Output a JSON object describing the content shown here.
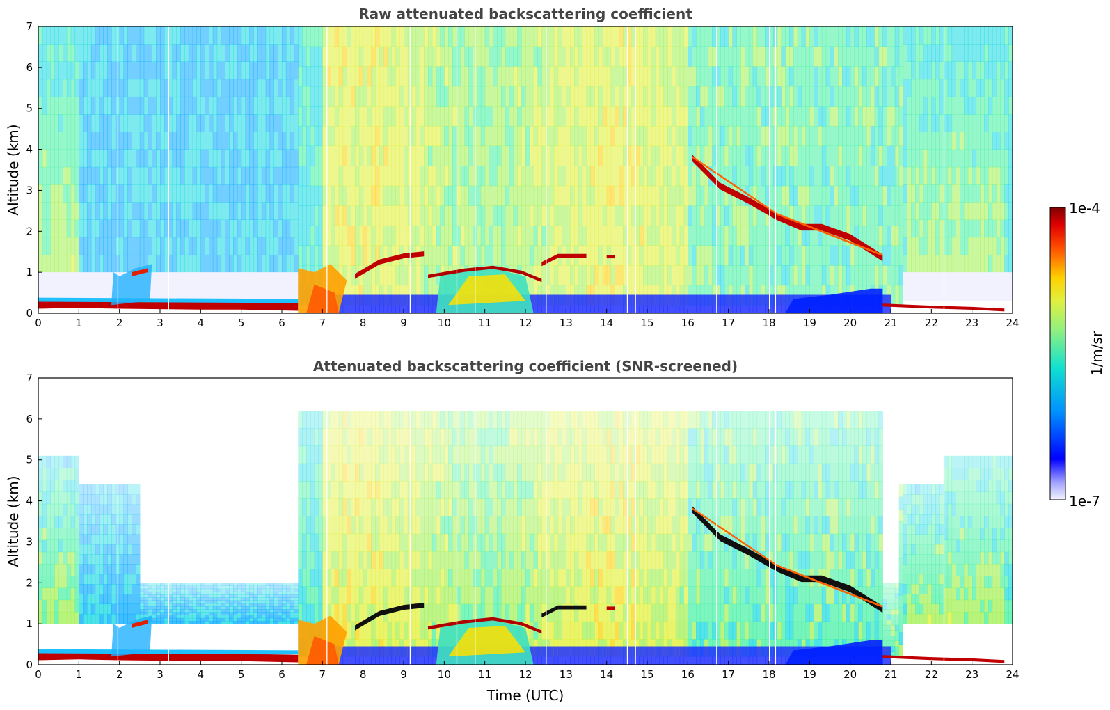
{
  "chart_data": [
    {
      "type": "heatmap",
      "title": "Raw attenuated backscattering coefficient",
      "xlabel": "",
      "ylabel": "Altitude (km)",
      "xlim": [
        0,
        24
      ],
      "ylim": [
        0,
        7
      ],
      "xticks": [
        0,
        1,
        2,
        3,
        4,
        5,
        6,
        7,
        8,
        9,
        10,
        11,
        12,
        13,
        14,
        15,
        16,
        17,
        18,
        19,
        20,
        21,
        22,
        23,
        24
      ],
      "yticks": [
        0,
        1,
        2,
        3,
        4,
        5,
        6,
        7
      ],
      "features": [
        {
          "name": "surface layer",
          "t_start": 0,
          "t_end": 6.4,
          "alt": 0.2,
          "value": "high"
        },
        {
          "name": "boundary-layer clouds",
          "t_start": 6.4,
          "t_end": 12.3,
          "alt_top": 1.2,
          "value": "high"
        },
        {
          "name": "cloud layer",
          "t_start": 7.8,
          "t_end": 14.2,
          "alt": 1.3,
          "value": "high"
        },
        {
          "name": "descending cloud layer",
          "t_start": 16.0,
          "t_end": 20.8,
          "alt_start": 3.8,
          "alt_end": 1.3,
          "value": "high"
        },
        {
          "name": "evening surface layer",
          "t_start": 20.8,
          "t_end": 23.8,
          "alt": 0.15,
          "value": "high"
        }
      ]
    },
    {
      "type": "heatmap",
      "title": "Attenuated backscattering coefficient (SNR-screened)",
      "xlabel": "Time (UTC)",
      "ylabel": "Altitude (km)",
      "xlim": [
        0,
        24
      ],
      "ylim": [
        0,
        7
      ],
      "xticks": [
        0,
        1,
        2,
        3,
        4,
        5,
        6,
        7,
        8,
        9,
        10,
        11,
        12,
        13,
        14,
        15,
        16,
        17,
        18,
        19,
        20,
        21,
        22,
        23,
        24
      ],
      "yticks": [
        0,
        1,
        2,
        3,
        4,
        5,
        6,
        7
      ]
    }
  ],
  "colorbar": {
    "label": "1/m/sr",
    "min_label": "1e-7",
    "max_label": "1e-4",
    "scale": "log",
    "colors": [
      "#eef0fa",
      "#0000ff",
      "#00a0ff",
      "#20e0c0",
      "#c8f040",
      "#ffd000",
      "#ff3000",
      "#8b0000"
    ]
  }
}
